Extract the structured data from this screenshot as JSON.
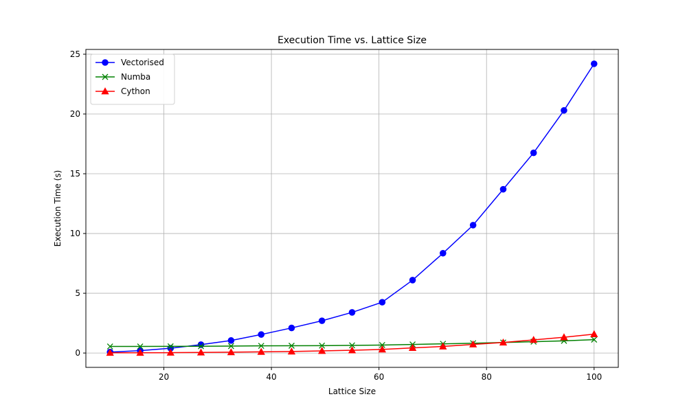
{
  "chart_data": {
    "type": "line",
    "title": "Execution Time vs. Lattice Size",
    "xlabel": "Lattice Size",
    "ylabel": "Execution Time (s)",
    "xlim": [
      5.5,
      104.5
    ],
    "ylim": [
      -1.2,
      25.4
    ],
    "xticks": [
      20,
      40,
      60,
      80,
      100
    ],
    "yticks": [
      0,
      5,
      10,
      15,
      20,
      25
    ],
    "grid": true,
    "legend_position": "top-left",
    "x": [
      10,
      15.6,
      21.25,
      26.9,
      32.5,
      38.1,
      43.75,
      49.4,
      55,
      60.6,
      66.25,
      71.9,
      77.5,
      83.1,
      88.75,
      94.4,
      100
    ],
    "series": [
      {
        "name": "Vectorised",
        "color": "#0000ff",
        "marker": "circle",
        "values": [
          0.08,
          0.2,
          0.4,
          0.7,
          1.05,
          1.55,
          2.1,
          2.7,
          3.4,
          4.25,
          6.1,
          8.35,
          10.7,
          13.7,
          16.75,
          20.3,
          24.2
        ]
      },
      {
        "name": "Numba",
        "color": "#008000",
        "marker": "x",
        "values": [
          0.55,
          0.55,
          0.56,
          0.57,
          0.58,
          0.6,
          0.61,
          0.62,
          0.64,
          0.67,
          0.72,
          0.77,
          0.82,
          0.88,
          0.95,
          1.02,
          1.12
        ]
      },
      {
        "name": "Cython",
        "color": "#ff0000",
        "marker": "triangle",
        "values": [
          0.02,
          0.02,
          0.03,
          0.05,
          0.07,
          0.1,
          0.13,
          0.18,
          0.23,
          0.3,
          0.43,
          0.55,
          0.72,
          0.88,
          1.1,
          1.32,
          1.58
        ]
      }
    ]
  }
}
